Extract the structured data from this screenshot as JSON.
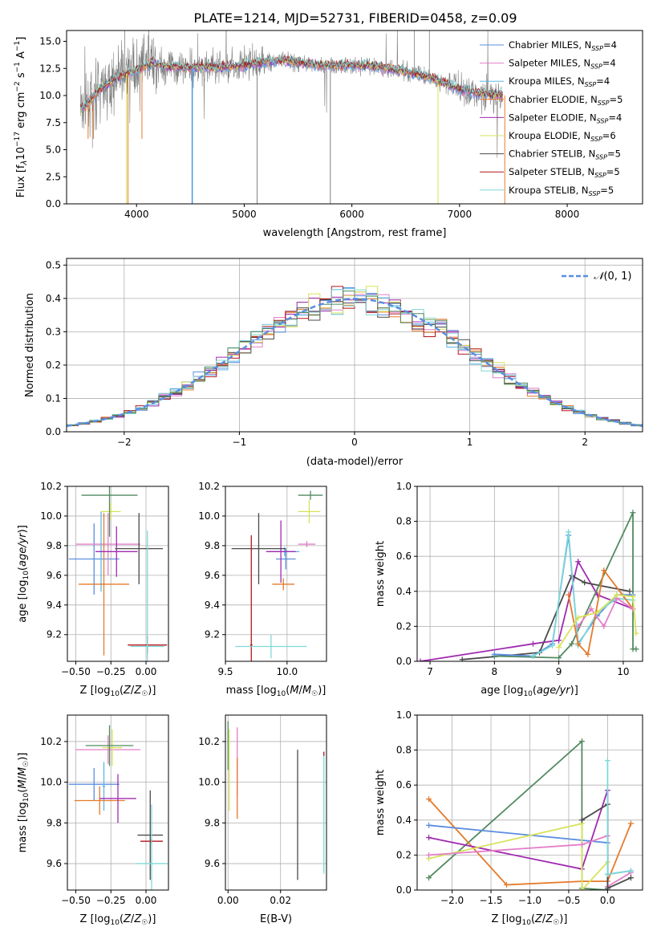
{
  "figure": {
    "title": "PLATE=1214, MJD=52731, FIBERID=0458, z=0.09"
  },
  "colors": [
    "#5b8ee0",
    "#e37fc9",
    "#5cb8e6",
    "#e57a2b",
    "#a02ab0",
    "#d7e35a",
    "#4a4a4a",
    "#b3151c",
    "#7fd8d8",
    "#528a60"
  ],
  "chart_data": [
    {
      "id": "spectrum",
      "type": "line",
      "xlabel": "wavelength [Angstrom, rest frame]",
      "ylabel": "Flux [f_λ10^{-17} erg cm^{-2} s^{-1} A^{-1}]",
      "xlim": [
        3350,
        8700
      ],
      "ylim": [
        0,
        16
      ],
      "xticks": [
        4000,
        5000,
        6000,
        7000,
        8000
      ],
      "yticks": [
        0.0,
        2.5,
        5.0,
        7.5,
        10.0,
        12.5,
        15.0
      ],
      "grid": false,
      "legend_position": "upper-right",
      "series": [
        {
          "name": "Chabrier MILES, N_SSP=4",
          "color": "#5b8ee0"
        },
        {
          "name": "Salpeter MILES, N_SSP=4",
          "color": "#e37fc9"
        },
        {
          "name": "Kroupa MILES, N_SSP=4",
          "color": "#5cb8e6"
        },
        {
          "name": "Chabrier ELODIE, N_SSP=5",
          "color": "#e57a2b"
        },
        {
          "name": "Salpeter ELODIE, N_SSP=4",
          "color": "#a02ab0"
        },
        {
          "name": "Kroupa ELODIE, N_SSP=6",
          "color": "#d7e35a"
        },
        {
          "name": "Chabrier STELIB, N_SSP=5",
          "color": "#4a4a4a"
        },
        {
          "name": "Salpeter STELIB, N_SSP=5",
          "color": "#b3151c"
        },
        {
          "name": "Kroupa STELIB, N_SSP=5",
          "color": "#7fd8d8"
        }
      ],
      "model_curve": {
        "x": [
          3480,
          3550,
          3650,
          3750,
          3850,
          3950,
          4050,
          4150,
          4250,
          4400,
          4600,
          4800,
          5000,
          5200,
          5400,
          5600,
          5800,
          6000,
          6200,
          6400,
          6600,
          6800,
          7000,
          7200,
          7400
        ],
        "y": [
          8.7,
          9.2,
          10.5,
          11.2,
          11.8,
          12.2,
          12.6,
          13.0,
          12.7,
          12.6,
          12.6,
          12.6,
          12.8,
          13.1,
          13.2,
          12.9,
          12.7,
          12.8,
          12.7,
          12.4,
          12.0,
          11.4,
          10.6,
          10.2,
          10.0
        ]
      }
    },
    {
      "id": "residuals",
      "type": "line",
      "xlabel": "(data-model)/error",
      "ylabel": "Normed distribution",
      "xlim": [
        -2.5,
        2.5
      ],
      "ylim": [
        0,
        0.52
      ],
      "xticks": [
        -2,
        -1,
        0,
        1,
        2
      ],
      "yticks": [
        0.0,
        0.1,
        0.2,
        0.3,
        0.4,
        0.5
      ],
      "grid": true,
      "legend_position": "upper-right",
      "legend_label": "N(0,1)",
      "bin_width": 0.1
    },
    {
      "id": "z-age",
      "type": "scatter",
      "xlabel": "Z [log10(Z/Z☉)]",
      "ylabel": "age  [log10(age/yr)]",
      "xlim": [
        -0.56,
        0.16
      ],
      "ylim": [
        9.02,
        10.2
      ],
      "xticks": [
        -0.5,
        -0.25,
        0.0
      ],
      "yticks": [
        9.2,
        9.4,
        9.6,
        9.8,
        10.0,
        10.2
      ],
      "grid": true,
      "errorbars": [
        {
          "x": -0.37,
          "y": 9.71,
          "xerr": 0.18,
          "yerr": 0.24,
          "color": "#5b8ee0"
        },
        {
          "x": -0.27,
          "y": 9.81,
          "xerr": 0.23,
          "yerr": 0.21,
          "color": "#e37fc9"
        },
        {
          "x": -0.32,
          "y": 9.76,
          "xerr": 0.01,
          "yerr": 0.27,
          "color": "#5cb8e6"
        },
        {
          "x": -0.3,
          "y": 9.54,
          "xerr": 0.18,
          "yerr": 0.48,
          "color": "#e57a2b"
        },
        {
          "x": -0.21,
          "y": 9.76,
          "xerr": 0.15,
          "yerr": 0.17,
          "color": "#a02ab0"
        },
        {
          "x": -0.25,
          "y": 10.03,
          "xerr": 0.07,
          "yerr": 0.06,
          "color": "#d7e35a"
        },
        {
          "x": -0.05,
          "y": 9.78,
          "xerr": 0.17,
          "yerr": 0.24,
          "color": "#4a4a4a"
        },
        {
          "x": 0.01,
          "y": 9.13,
          "xerr": 0.14,
          "yerr": 0.06,
          "color": "#b3151c"
        },
        {
          "x": 0.01,
          "y": 9.12,
          "xerr": 0.12,
          "yerr": 0.78,
          "color": "#7fd8d8"
        },
        {
          "x": -0.26,
          "y": 10.14,
          "xerr": 0.2,
          "yerr": 0.28,
          "color": "#528a60"
        }
      ]
    },
    {
      "id": "mass-age",
      "type": "scatter",
      "xlabel": "mass [log10(M/M☉)]",
      "ylabel": "",
      "xlim": [
        9.5,
        10.32
      ],
      "ylim": [
        9.02,
        10.2
      ],
      "xticks": [
        9.5,
        10.0
      ],
      "yticks": [
        9.2,
        9.4,
        9.6,
        9.8,
        10.0,
        10.2
      ],
      "grid": true,
      "errorbars": [
        {
          "x": 9.99,
          "y": 9.71,
          "xerr": 0.08,
          "yerr": 0.07,
          "color": "#5b8ee0"
        },
        {
          "x": 10.16,
          "y": 9.81,
          "xerr": 0.07,
          "yerr": 0.02,
          "color": "#e37fc9"
        },
        {
          "x": 9.98,
          "y": 9.76,
          "xerr": 0.12,
          "yerr": 0.03,
          "color": "#5cb8e6"
        },
        {
          "x": 9.97,
          "y": 9.54,
          "xerr": 0.09,
          "yerr": 0.04,
          "color": "#e57a2b"
        },
        {
          "x": 9.95,
          "y": 9.76,
          "xerr": 0.12,
          "yerr": 0.21,
          "color": "#a02ab0"
        },
        {
          "x": 10.18,
          "y": 10.03,
          "xerr": 0.09,
          "yerr": 0.08,
          "color": "#d7e35a"
        },
        {
          "x": 9.77,
          "y": 9.78,
          "xerr": 0.22,
          "yerr": 0.24,
          "color": "#4a4a4a"
        },
        {
          "x": 9.71,
          "y": 9.13,
          "xerr": 0.01,
          "yerr": 0.74,
          "color": "#b3151c"
        },
        {
          "x": 9.87,
          "y": 9.12,
          "xerr": 0.29,
          "yerr": 0.08,
          "color": "#7fd8d8"
        },
        {
          "x": 10.19,
          "y": 10.14,
          "xerr": 0.1,
          "yerr": 0.03,
          "color": "#528a60"
        }
      ]
    },
    {
      "id": "age-weight",
      "type": "line",
      "xlabel": "age  [log10(age/yr)]",
      "ylabel": "mass weight",
      "xlim": [
        6.8,
        10.3
      ],
      "ylim": [
        0,
        1.0
      ],
      "xticks": [
        7,
        8,
        9,
        10
      ],
      "yticks": [
        0.0,
        0.2,
        0.4,
        0.6,
        0.8,
        1.0
      ],
      "grid": true,
      "series": [
        {
          "color": "#a02ab0",
          "x": [
            6.85,
            8.6,
            9.0,
            9.3,
            9.6,
            10.15
          ],
          "y": [
            0.0,
            0.1,
            0.12,
            0.57,
            0.38,
            0.3
          ]
        },
        {
          "color": "#4a4a4a",
          "x": [
            7.5,
            8.7,
            9.2,
            9.4,
            10.1
          ],
          "y": [
            0.01,
            0.05,
            0.49,
            0.45,
            0.4
          ]
        },
        {
          "color": "#528a60",
          "x": [
            8.0,
            9.0,
            9.2,
            10.15,
            10.15,
            10.2
          ],
          "y": [
            0.03,
            0.02,
            0.1,
            0.85,
            0.07,
            0.07
          ]
        },
        {
          "color": "#5b8ee0",
          "x": [
            8.0,
            8.6,
            8.9,
            9.15,
            9.3,
            9.6,
            9.9,
            10.15
          ],
          "y": [
            0.04,
            0.03,
            0.1,
            0.72,
            0.1,
            0.26,
            0.38,
            0.38
          ]
        },
        {
          "color": "#7fd8d8",
          "x": [
            8.6,
            8.9,
            9.15,
            9.3,
            9.6,
            9.9,
            10.15
          ],
          "y": [
            0.03,
            0.09,
            0.74,
            0.09,
            0.28,
            0.36,
            0.35
          ]
        },
        {
          "color": "#e57a2b",
          "x": [
            9.15,
            9.3,
            9.45,
            9.7,
            10.15
          ],
          "y": [
            0.38,
            0.1,
            0.04,
            0.52,
            0.3
          ]
        },
        {
          "color": "#e37fc9",
          "x": [
            9.3,
            9.5,
            9.7,
            9.9,
            10.15
          ],
          "y": [
            0.2,
            0.3,
            0.2,
            0.36,
            0.3
          ]
        },
        {
          "color": "#d7e35a",
          "x": [
            9.0,
            9.3,
            9.6,
            9.9,
            10.15,
            10.2
          ],
          "y": [
            0.08,
            0.25,
            0.28,
            0.38,
            0.37,
            0.16
          ]
        }
      ]
    },
    {
      "id": "z-mass",
      "type": "scatter",
      "xlabel": "Z [log10(Z/Z☉)]",
      "ylabel": "mass [log10(M/M☉)]",
      "xlim": [
        -0.56,
        0.16
      ],
      "ylim": [
        9.47,
        10.33
      ],
      "xticks": [
        -0.5,
        -0.25,
        0.0
      ],
      "yticks": [
        9.6,
        9.8,
        10.0,
        10.2
      ],
      "grid": true,
      "errorbars": [
        {
          "x": -0.37,
          "y": 9.99,
          "xerr": 0.18,
          "yerr": 0.08,
          "color": "#5b8ee0"
        },
        {
          "x": -0.27,
          "y": 10.16,
          "xerr": 0.23,
          "yerr": 0.07,
          "color": "#e37fc9"
        },
        {
          "x": -0.3,
          "y": 9.98,
          "xerr": 0.01,
          "yerr": 0.12,
          "color": "#5cb8e6"
        },
        {
          "x": -0.33,
          "y": 9.91,
          "xerr": 0.18,
          "yerr": 0.07,
          "color": "#e57a2b"
        },
        {
          "x": -0.2,
          "y": 9.92,
          "xerr": 0.13,
          "yerr": 0.12,
          "color": "#a02ab0"
        },
        {
          "x": -0.24,
          "y": 10.17,
          "xerr": 0.07,
          "yerr": 0.09,
          "color": "#d7e35a"
        },
        {
          "x": 0.03,
          "y": 9.74,
          "xerr": 0.09,
          "yerr": 0.22,
          "color": "#4a4a4a"
        },
        {
          "x": 0.04,
          "y": 9.71,
          "xerr": 0.08,
          "yerr": 0.01,
          "color": "#b3151c"
        },
        {
          "x": 0.04,
          "y": 9.6,
          "xerr": 0.11,
          "yerr": 0.29,
          "color": "#7fd8d8"
        },
        {
          "x": -0.26,
          "y": 10.18,
          "xerr": 0.17,
          "yerr": 0.1,
          "color": "#528a60"
        }
      ]
    },
    {
      "id": "ebv-mass",
      "type": "scatter",
      "xlabel": "E(B-V)",
      "ylabel": "",
      "xlim": [
        -0.001,
        0.0375
      ],
      "ylim": [
        9.47,
        10.33
      ],
      "xticks": [
        0.0,
        0.02
      ],
      "yticks": [
        9.6,
        9.8,
        10.0,
        10.2
      ],
      "grid": true,
      "errorbars": [
        {
          "x": 0.0,
          "y": 10.18,
          "xerr": 0,
          "yerr": 0.12,
          "color": "#528a60"
        },
        {
          "x": 0.0005,
          "y": 10.06,
          "xerr": 0,
          "yerr": 0.2,
          "color": "#d7e35a"
        },
        {
          "x": 0.0035,
          "y": 10.1,
          "xerr": 0,
          "yerr": 0.17,
          "color": "#e37fc9"
        },
        {
          "x": 0.0035,
          "y": 9.97,
          "xerr": 0,
          "yerr": 0.15,
          "color": "#e57a2b"
        },
        {
          "x": 0.0265,
          "y": 9.84,
          "xerr": 0,
          "yerr": 0.32,
          "color": "#4a4a4a"
        },
        {
          "x": 0.0365,
          "y": 9.85,
          "xerr": 0,
          "yerr": 0.3,
          "color": "#7fd8d8"
        },
        {
          "x": 0.0365,
          "y": 10.14,
          "xerr": 0,
          "yerr": 0.01,
          "color": "#b3151c"
        }
      ]
    },
    {
      "id": "z-weight",
      "type": "line",
      "xlabel": "Z [log10(Z/Z☉)]",
      "ylabel": "mass weight",
      "xlim": [
        -2.45,
        0.45
      ],
      "ylim": [
        0,
        1.0
      ],
      "xticks": [
        -2.0,
        -1.5,
        -1.0,
        -0.5,
        0.0
      ],
      "yticks": [
        0.0,
        0.2,
        0.4,
        0.6,
        0.8,
        1.0
      ],
      "grid": true,
      "series": [
        {
          "color": "#528a60",
          "x": [
            -2.3,
            -0.33,
            -0.33,
            0.0
          ],
          "y": [
            0.07,
            0.85,
            0.01,
            0.0
          ]
        },
        {
          "color": "#e57a2b",
          "x": [
            -2.3,
            -1.3,
            -0.33,
            0.0,
            0.3
          ],
          "y": [
            0.52,
            0.03,
            0.05,
            0.05,
            0.38
          ]
        },
        {
          "color": "#5b8ee0",
          "x": [
            -2.3,
            0.0,
            0.0,
            0.3
          ],
          "y": [
            0.37,
            0.27,
            0.09,
            0.11
          ]
        },
        {
          "color": "#a02ab0",
          "x": [
            -2.3,
            -0.33,
            0.0,
            0.0
          ],
          "y": [
            0.3,
            0.12,
            0.57,
            0.0
          ]
        },
        {
          "color": "#d7e35a",
          "x": [
            -2.3,
            -0.33,
            -0.33,
            0.0
          ],
          "y": [
            0.18,
            0.38,
            0.0,
            0.16
          ]
        },
        {
          "color": "#e37fc9",
          "x": [
            -2.3,
            -0.33,
            0.0,
            0.0,
            0.3
          ],
          "y": [
            0.2,
            0.26,
            0.31,
            0.02,
            0.1
          ]
        },
        {
          "color": "#4a4a4a",
          "x": [
            -0.33,
            0.0,
            0.0,
            0.3
          ],
          "y": [
            0.4,
            0.49,
            0.01,
            0.07
          ]
        },
        {
          "color": "#7fd8d8",
          "x": [
            0.0,
            0.0,
            0.3
          ],
          "y": [
            0.74,
            0.09,
            0.11
          ]
        }
      ]
    }
  ]
}
